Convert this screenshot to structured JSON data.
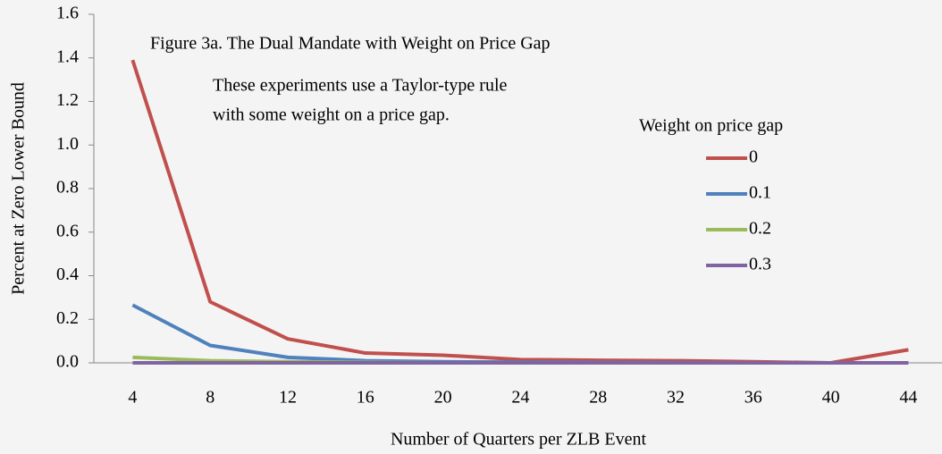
{
  "chart_data": {
    "type": "line",
    "title": "Figure 3a. The Dual Mandate with Weight on Price Gap",
    "annotation": [
      "These experiments use a Taylor-type rule",
      "with some weight on a price gap."
    ],
    "legend_title": "Weight on price gap",
    "x_label": "Number of Quarters per ZLB Event",
    "y_label": "Percent  at Zero Lower Bound",
    "categories": [
      "4",
      "8",
      "12",
      "16",
      "20",
      "24",
      "28",
      "32",
      "36",
      "40",
      "44"
    ],
    "series": [
      {
        "name": "0",
        "color": "#c0504d",
        "values": [
          1.39,
          0.28,
          0.11,
          0.045,
          0.035,
          0.015,
          0.012,
          0.01,
          0.005,
          0.0,
          0.06
        ]
      },
      {
        "name": "0.1",
        "color": "#4f81bd",
        "values": [
          0.265,
          0.08,
          0.025,
          0.01,
          0.005,
          0.003,
          0.002,
          0.001,
          0.0,
          0.0,
          0.0
        ]
      },
      {
        "name": "0.2",
        "color": "#9bbb59",
        "values": [
          0.025,
          0.01,
          0.005,
          0.002,
          0.0,
          0.0,
          0.0,
          0.0,
          0.0,
          0.0,
          0.0
        ]
      },
      {
        "name": "0.3",
        "color": "#8064a2",
        "values": [
          0.0,
          0.0,
          0.0,
          0.0,
          0.0,
          0.0,
          0.0,
          0.0,
          0.0,
          0.0,
          0.0
        ]
      }
    ],
    "ylim": [
      0,
      1.6
    ],
    "yticks": [
      {
        "value": 0,
        "label": "0.0"
      },
      {
        "value": 0.2,
        "label": "0.2"
      },
      {
        "value": 0.4,
        "label": "0.4"
      },
      {
        "value": 0.6,
        "label": "0.6"
      },
      {
        "value": 0.8,
        "label": "0.8"
      },
      {
        "value": 1,
        "label": "1.0"
      },
      {
        "value": 1.2,
        "label": "1.2"
      },
      {
        "value": 1.4,
        "label": "1.4"
      },
      {
        "value": 1.6,
        "label": "1.6"
      }
    ]
  }
}
